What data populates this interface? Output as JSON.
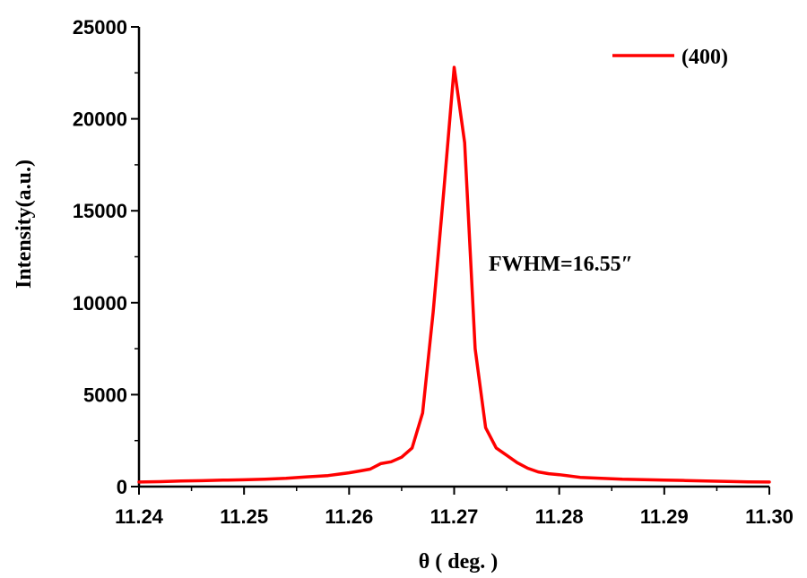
{
  "chart_data": {
    "type": "line",
    "xlabel": "θ ( deg. )",
    "ylabel": "Intensity(a.u.)",
    "xlim": [
      11.24,
      11.3
    ],
    "ylim": [
      0,
      25000
    ],
    "x_ticks": [
      "11.24",
      "11.25",
      "11.26",
      "11.27",
      "11.28",
      "11.29",
      "11.30"
    ],
    "y_ticks": [
      "0",
      "5000",
      "10000",
      "15000",
      "20000",
      "25000"
    ],
    "grid": false,
    "legend_position": "top-right",
    "annotation": "FWHM=16.55″",
    "line_color": "#ff0000",
    "series": [
      {
        "name": "(400)",
        "x": [
          11.24,
          11.242,
          11.244,
          11.246,
          11.248,
          11.25,
          11.252,
          11.254,
          11.256,
          11.258,
          11.26,
          11.261,
          11.262,
          11.263,
          11.264,
          11.265,
          11.266,
          11.267,
          11.268,
          11.269,
          11.27,
          11.271,
          11.272,
          11.273,
          11.274,
          11.275,
          11.276,
          11.277,
          11.278,
          11.279,
          11.28,
          11.282,
          11.284,
          11.286,
          11.288,
          11.29,
          11.292,
          11.294,
          11.296,
          11.298,
          11.3
        ],
        "y": [
          250,
          270,
          300,
          320,
          350,
          370,
          400,
          450,
          530,
          600,
          750,
          850,
          950,
          1250,
          1350,
          1600,
          2100,
          4000,
          9500,
          16000,
          22800,
          18700,
          7500,
          3200,
          2100,
          1700,
          1300,
          1000,
          800,
          700,
          650,
          500,
          450,
          400,
          380,
          350,
          330,
          300,
          280,
          260,
          250
        ]
      }
    ]
  }
}
